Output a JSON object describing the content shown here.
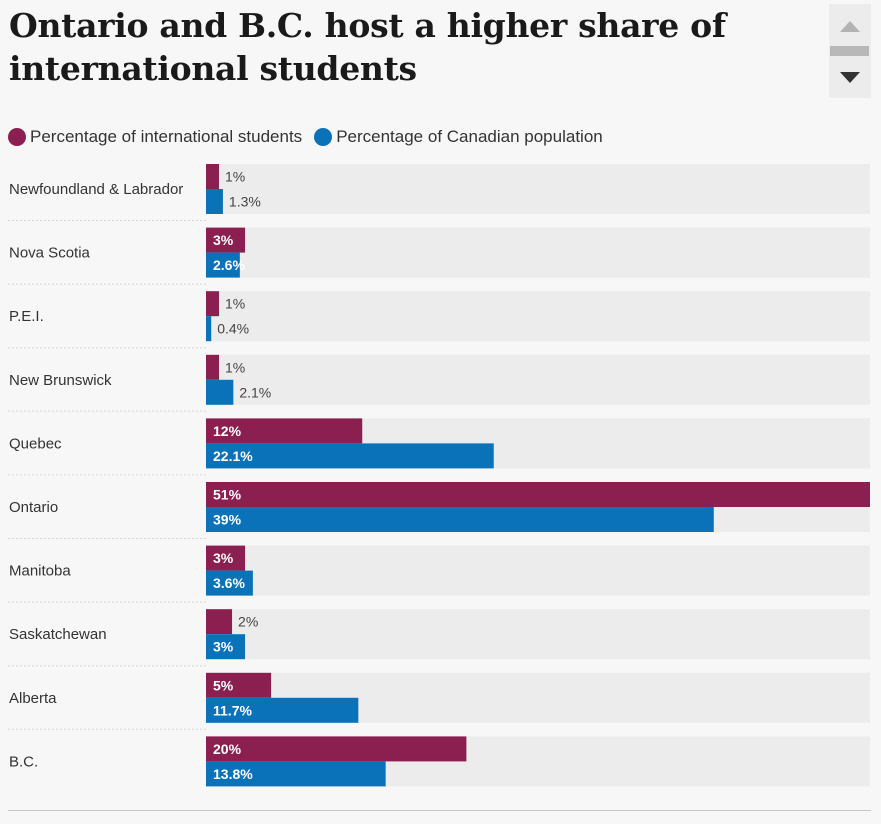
{
  "chart_data": {
    "type": "bar",
    "orientation": "horizontal",
    "title": "Ontario and B.C. host a higher share of international students",
    "categories": [
      "Newfoundland & Labrador",
      "Nova Scotia",
      "P.E.I.",
      "New Brunswick",
      "Quebec",
      "Ontario",
      "Manitoba",
      "Saskatchewan",
      "Alberta",
      "B.C."
    ],
    "series": [
      {
        "name": "Percentage of international students",
        "color": "#8a1f50",
        "values": [
          1,
          3,
          1,
          1,
          12,
          51,
          3,
          2,
          5,
          20
        ],
        "labels": [
          "1%",
          "3%",
          "1%",
          "1%",
          "12%",
          "51%",
          "3%",
          "2%",
          "5%",
          "20%"
        ]
      },
      {
        "name": "Percentage of Canadian population",
        "color": "#0a72b8",
        "values": [
          1.3,
          2.6,
          0.4,
          2.1,
          22.1,
          39,
          3.6,
          3,
          11.7,
          13.8
        ],
        "labels": [
          "1.3%",
          "2.6%",
          "0.4%",
          "2.1%",
          "22.1%",
          "39%",
          "3.6%",
          "3%",
          "11.7%",
          "13.8%"
        ]
      }
    ],
    "xlim": [
      0,
      51
    ],
    "legend_position": "top-left",
    "grid": false
  }
}
